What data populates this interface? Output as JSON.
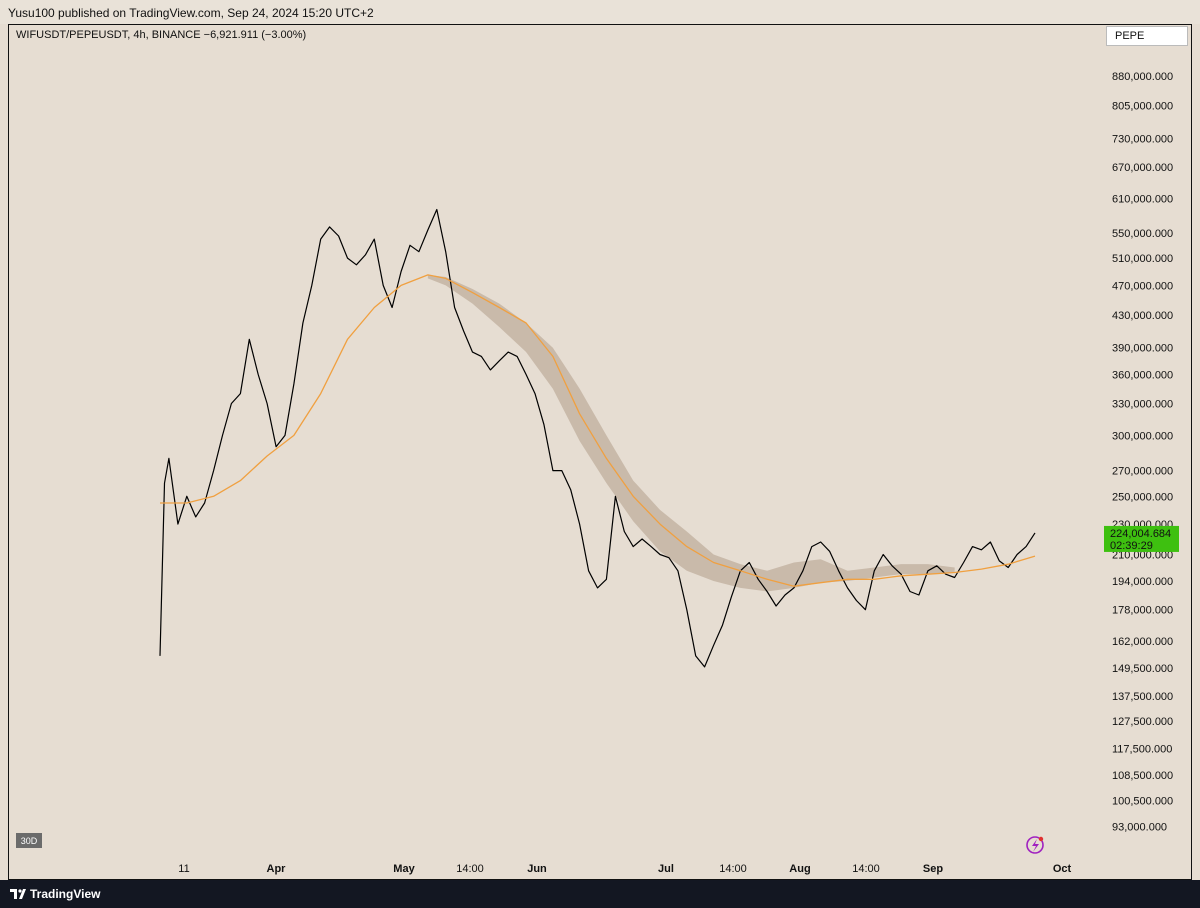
{
  "header": {
    "published_line": "Yusu100 published on TradingView.com, Sep 24, 2024 15:20 UTC+2"
  },
  "symbol_line": "WIFUSDT/PEPEUSDT, 4h, BINANCE  −6,921.911 (−3.00%)",
  "compare_label": "PEPE",
  "range_badge": "30D",
  "footer": {
    "brand": "TradingView",
    "logo": "tradingview-logo-icon"
  },
  "snapshot_icon": "lightning-icon",
  "colors": {
    "background": "#e6ddd2",
    "price": "#000000",
    "ma": "#f0a040",
    "ribbon": "#bfae9c",
    "last_price_badge": "#3ec010",
    "footer": "#131722"
  },
  "chart_data": {
    "type": "line",
    "scale": "log",
    "grid": false,
    "x_ticks": [
      "11",
      "Apr",
      "May",
      "14:00",
      "Jun",
      "Jul",
      "14:00",
      "Aug",
      "14:00",
      "Sep",
      "Oct"
    ],
    "y_ticks": [
      "880,000.000",
      "805,000.000",
      "730,000.000",
      "670,000.000",
      "610,000.000",
      "550,000.000",
      "510,000.000",
      "470,000.000",
      "430,000.000",
      "390,000.000",
      "360,000.000",
      "330,000.000",
      "300,000.000",
      "270,000.000",
      "250,000.000",
      "230,000.000",
      "210,000.000",
      "194,000.000",
      "178,000.000",
      "162,000.000",
      "149,500.000",
      "137,500.000",
      "127,500.000",
      "117,500.000",
      "108,500.000",
      "100,500.000",
      "93,000.000"
    ],
    "ylim": [
      88000,
      980000
    ],
    "last_price": {
      "value": "224,004.684",
      "countdown": "02:39:29"
    },
    "series": [
      {
        "values": [
          [
            0,
            155000
          ],
          [
            0.5,
            260000
          ],
          [
            1,
            280000
          ],
          [
            2,
            230000
          ],
          [
            3,
            250000
          ],
          [
            4,
            235000
          ],
          [
            5,
            245000
          ],
          [
            6,
            270000
          ],
          [
            7,
            300000
          ],
          [
            8,
            330000
          ],
          [
            9,
            340000
          ],
          [
            10,
            400000
          ],
          [
            11,
            360000
          ],
          [
            12,
            330000
          ],
          [
            13,
            290000
          ],
          [
            14,
            300000
          ],
          [
            15,
            350000
          ],
          [
            16,
            420000
          ],
          [
            17,
            470000
          ],
          [
            18,
            540000
          ],
          [
            19,
            560000
          ],
          [
            20,
            545000
          ],
          [
            21,
            510000
          ],
          [
            22,
            500000
          ],
          [
            23,
            515000
          ],
          [
            24,
            540000
          ],
          [
            25,
            470000
          ],
          [
            26,
            440000
          ],
          [
            27,
            490000
          ],
          [
            28,
            530000
          ],
          [
            29,
            520000
          ],
          [
            30,
            555000
          ],
          [
            31,
            590000
          ],
          [
            32,
            520000
          ],
          [
            33,
            440000
          ],
          [
            34,
            410000
          ],
          [
            35,
            385000
          ],
          [
            36,
            380000
          ],
          [
            37,
            365000
          ],
          [
            38,
            375000
          ],
          [
            39,
            385000
          ],
          [
            40,
            380000
          ],
          [
            41,
            360000
          ],
          [
            42,
            340000
          ],
          [
            43,
            310000
          ],
          [
            44,
            270000
          ],
          [
            45,
            270000
          ],
          [
            46,
            255000
          ],
          [
            47,
            230000
          ],
          [
            48,
            200000
          ],
          [
            49,
            190000
          ],
          [
            50,
            195000
          ],
          [
            51,
            250000
          ],
          [
            52,
            225000
          ],
          [
            53,
            215000
          ],
          [
            54,
            220000
          ],
          [
            55,
            215000
          ],
          [
            56,
            210000
          ],
          [
            57,
            208000
          ],
          [
            58,
            200000
          ],
          [
            59,
            178000
          ],
          [
            60,
            155000
          ],
          [
            61,
            150000
          ],
          [
            62,
            160000
          ],
          [
            63,
            170000
          ],
          [
            64,
            185000
          ],
          [
            65,
            200000
          ],
          [
            66,
            205000
          ],
          [
            67,
            195000
          ],
          [
            68,
            188000
          ],
          [
            69,
            180000
          ],
          [
            70,
            186000
          ],
          [
            71,
            190000
          ],
          [
            72,
            200000
          ],
          [
            73,
            215000
          ],
          [
            74,
            218000
          ],
          [
            75,
            212000
          ],
          [
            76,
            200000
          ],
          [
            77,
            190000
          ],
          [
            78,
            183000
          ],
          [
            79,
            178000
          ],
          [
            80,
            200000
          ],
          [
            81,
            210000
          ],
          [
            82,
            203000
          ],
          [
            83,
            198000
          ],
          [
            84,
            188000
          ],
          [
            85,
            186000
          ],
          [
            86,
            200000
          ],
          [
            87,
            203000
          ],
          [
            88,
            198000
          ],
          [
            89,
            196000
          ],
          [
            90,
            205000
          ],
          [
            91,
            215000
          ],
          [
            92,
            213000
          ],
          [
            93,
            218000
          ],
          [
            94,
            206000
          ],
          [
            95,
            202000
          ],
          [
            96,
            210000
          ],
          [
            97,
            215000
          ],
          [
            98,
            224000
          ]
        ]
      },
      {
        "values": [
          [
            0,
            245000
          ],
          [
            3,
            245000
          ],
          [
            6,
            250000
          ],
          [
            9,
            262000
          ],
          [
            12,
            282000
          ],
          [
            15,
            300000
          ],
          [
            18,
            340000
          ],
          [
            21,
            400000
          ],
          [
            24,
            440000
          ],
          [
            27,
            470000
          ],
          [
            30,
            485000
          ],
          [
            32,
            480000
          ],
          [
            35,
            460000
          ],
          [
            38,
            440000
          ],
          [
            41,
            420000
          ],
          [
            44,
            380000
          ],
          [
            47,
            320000
          ],
          [
            50,
            280000
          ],
          [
            53,
            250000
          ],
          [
            56,
            230000
          ],
          [
            59,
            215000
          ],
          [
            62,
            205000
          ],
          [
            65,
            200000
          ],
          [
            68,
            195000
          ],
          [
            71,
            191000
          ],
          [
            74,
            193000
          ],
          [
            77,
            195000
          ],
          [
            80,
            195000
          ],
          [
            83,
            197000
          ],
          [
            86,
            198000
          ],
          [
            89,
            199000
          ],
          [
            92,
            201000
          ],
          [
            95,
            204000
          ],
          [
            98,
            209000
          ]
        ]
      }
    ],
    "ribbon": {
      "upper": [
        [
          30,
          485000
        ],
        [
          32,
          482000
        ],
        [
          35,
          465000
        ],
        [
          38,
          445000
        ],
        [
          41,
          420000
        ],
        [
          44,
          390000
        ],
        [
          47,
          345000
        ],
        [
          50,
          300000
        ],
        [
          53,
          262000
        ],
        [
          56,
          240000
        ],
        [
          59,
          225000
        ],
        [
          62,
          210000
        ],
        [
          65,
          204000
        ],
        [
          68,
          200000
        ],
        [
          71,
          205000
        ],
        [
          74,
          207000
        ],
        [
          77,
          200000
        ],
        [
          80,
          202000
        ],
        [
          83,
          204000
        ],
        [
          86,
          204000
        ],
        [
          89,
          202000
        ]
      ],
      "lower": [
        [
          30,
          480000
        ],
        [
          32,
          470000
        ],
        [
          35,
          445000
        ],
        [
          38,
          415000
        ],
        [
          41,
          385000
        ],
        [
          44,
          345000
        ],
        [
          47,
          295000
        ],
        [
          50,
          260000
        ],
        [
          53,
          232000
        ],
        [
          56,
          212000
        ],
        [
          59,
          200000
        ],
        [
          62,
          194000
        ],
        [
          65,
          190000
        ],
        [
          68,
          188000
        ],
        [
          71,
          190000
        ],
        [
          74,
          193000
        ],
        [
          77,
          194000
        ],
        [
          80,
          196000
        ],
        [
          83,
          198000
        ],
        [
          86,
          198000
        ],
        [
          89,
          199000
        ]
      ]
    }
  }
}
